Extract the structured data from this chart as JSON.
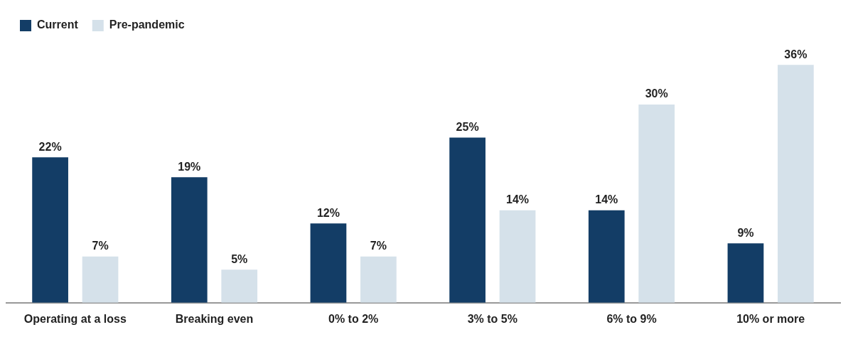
{
  "chart_data": {
    "type": "bar",
    "categories": [
      "Operating at a loss",
      "Breaking even",
      "0% to 2%",
      "3% to 5%",
      "6% to 9%",
      "10% or more"
    ],
    "series": [
      {
        "name": "Current",
        "color": "#133d66",
        "values": [
          22,
          19,
          12,
          25,
          14,
          9
        ],
        "value_labels": [
          "22%",
          "19%",
          "12%",
          "25%",
          "14%",
          "9%"
        ]
      },
      {
        "name": "Pre-pandemic",
        "color": "#d5e1ea",
        "values": [
          7,
          5,
          7,
          14,
          30,
          36
        ],
        "value_labels": [
          "7%",
          "5%",
          "7%",
          "14%",
          "30%",
          "36%"
        ]
      }
    ],
    "tick_labels": "x",
    "legend": "top left"
  }
}
